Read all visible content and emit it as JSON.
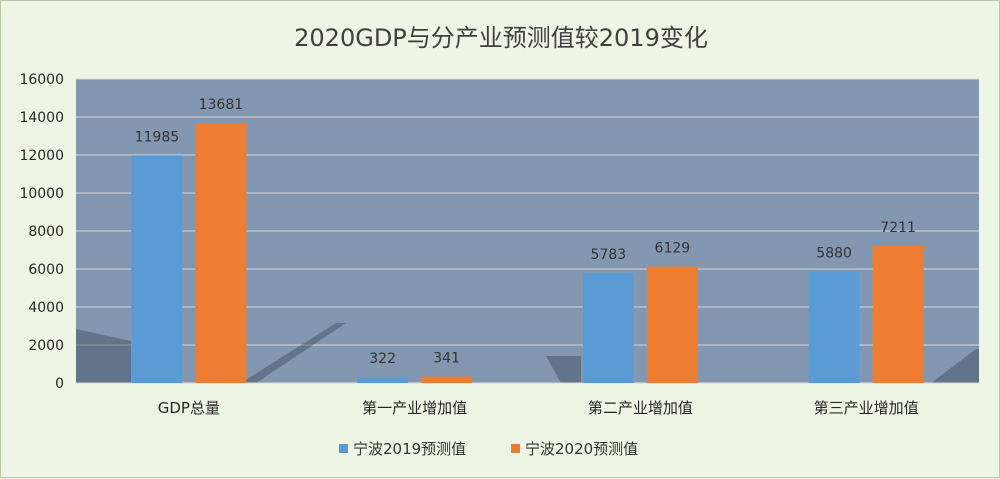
{
  "chart_data": {
    "type": "bar",
    "title": "2020GDP与分产业预测值较2019变化",
    "categories": [
      "GDP总量",
      "第一产业增加值",
      "第二产业增加值",
      "第三产业增加值"
    ],
    "series": [
      {
        "name": "宁波2019预测值",
        "values": [
          11985,
          322,
          5783,
          5880
        ],
        "color": "#5b9bd5"
      },
      {
        "name": "宁波2020预测值",
        "values": [
          13681,
          341,
          6129,
          7211
        ],
        "color": "#ed7d31"
      }
    ],
    "yticks": [
      "0",
      "2000",
      "4000",
      "6000",
      "8000",
      "10000",
      "12000",
      "14000",
      "16000"
    ],
    "ylim": [
      0,
      16000
    ],
    "grid": true,
    "legend_position": "bottom",
    "plot_background": "#8497b0"
  }
}
